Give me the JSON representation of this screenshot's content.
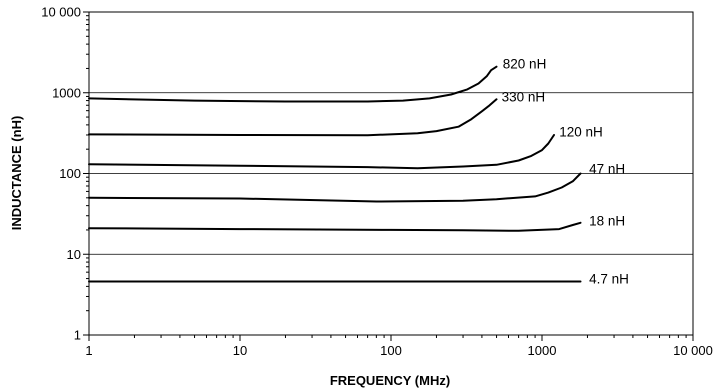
{
  "chart_data": {
    "type": "line",
    "xscale": "log",
    "yscale": "log",
    "xlim": [
      1,
      10000
    ],
    "ylim": [
      1,
      10000
    ],
    "grid": "horizontal major",
    "xlabel": "FREQUENCY (MHz)",
    "ylabel": "INDUCTANCE (nH)",
    "x_ticks": [
      {
        "value": 1,
        "label": "1"
      },
      {
        "value": 10,
        "label": "10"
      },
      {
        "value": 100,
        "label": "100"
      },
      {
        "value": 1000,
        "label": "1000"
      },
      {
        "value": 10000,
        "label": "10 000"
      }
    ],
    "y_ticks": [
      {
        "value": 1,
        "label": "1"
      },
      {
        "value": 10,
        "label": "10"
      },
      {
        "value": 100,
        "label": "100"
      },
      {
        "value": 1000,
        "label": "1000"
      },
      {
        "value": 10000,
        "label": "10 000"
      }
    ],
    "series": [
      {
        "name": "820 nH",
        "points": [
          [
            1,
            850
          ],
          [
            5,
            800
          ],
          [
            20,
            780
          ],
          [
            70,
            780
          ],
          [
            120,
            800
          ],
          [
            180,
            850
          ],
          [
            250,
            950
          ],
          [
            320,
            1100
          ],
          [
            380,
            1300
          ],
          [
            430,
            1600
          ],
          [
            460,
            1900
          ],
          [
            500,
            2100
          ]
        ]
      },
      {
        "name": "330 nH",
        "points": [
          [
            1,
            305
          ],
          [
            10,
            300
          ],
          [
            70,
            298
          ],
          [
            150,
            315
          ],
          [
            200,
            335
          ],
          [
            280,
            380
          ],
          [
            340,
            470
          ],
          [
            400,
            590
          ],
          [
            450,
            700
          ],
          [
            500,
            830
          ]
        ]
      },
      {
        "name": "120 nH",
        "points": [
          [
            1,
            130
          ],
          [
            10,
            125
          ],
          [
            70,
            120
          ],
          [
            150,
            116
          ],
          [
            300,
            122
          ],
          [
            500,
            128
          ],
          [
            700,
            145
          ],
          [
            850,
            165
          ],
          [
            1000,
            195
          ],
          [
            1100,
            235
          ],
          [
            1200,
            300
          ]
        ]
      },
      {
        "name": "47 nH",
        "points": [
          [
            1,
            50
          ],
          [
            10,
            49
          ],
          [
            80,
            45
          ],
          [
            300,
            46
          ],
          [
            500,
            48
          ],
          [
            900,
            52
          ],
          [
            1100,
            58
          ],
          [
            1350,
            67
          ],
          [
            1600,
            80
          ],
          [
            1800,
            100
          ]
        ]
      },
      {
        "name": "18 nH",
        "points": [
          [
            1,
            21
          ],
          [
            10,
            20.5
          ],
          [
            100,
            20
          ],
          [
            300,
            19.8
          ],
          [
            700,
            19.5
          ],
          [
            1300,
            20.5
          ],
          [
            1600,
            23
          ],
          [
            1800,
            24.5
          ]
        ]
      },
      {
        "name": "4.7 nH",
        "points": [
          [
            1,
            4.6
          ],
          [
            1800,
            4.6
          ]
        ]
      }
    ],
    "series_labels": [
      {
        "text": "820 nH",
        "value": [
          550,
          2300
        ]
      },
      {
        "text": "330 nH",
        "value": [
          540,
          900
        ]
      },
      {
        "text": "120 nH",
        "value": [
          1300,
          330
        ]
      },
      {
        "text": "47 nH",
        "value": [
          2050,
          115
        ]
      },
      {
        "text": "18 nH",
        "value": [
          2050,
          26
        ]
      },
      {
        "text": "4.7 nH",
        "value": [
          2050,
          5
        ]
      }
    ]
  }
}
